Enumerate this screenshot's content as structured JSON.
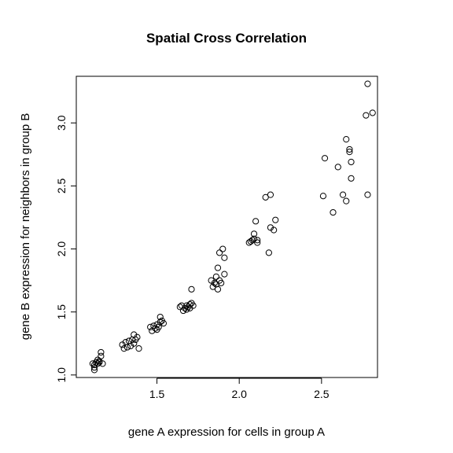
{
  "chart_data": {
    "type": "scatter",
    "title": "Spatial Cross Correlation",
    "xlabel": "gene A expression for cells in group A",
    "ylabel": "gene B expression for neighbors in group B",
    "xlim": [
      1.01,
      2.84
    ],
    "ylim": [
      0.98,
      3.37
    ],
    "x_ticks": [
      1.5,
      2.0,
      2.5
    ],
    "x_tick_labels": [
      "1.5",
      "2.0",
      "2.5"
    ],
    "y_ticks": [
      1.0,
      1.5,
      2.0,
      2.5,
      3.0
    ],
    "y_tick_labels": [
      "1.0",
      "1.5",
      "2.0",
      "2.5",
      "3.0"
    ],
    "grid": false,
    "marker": "open-circle",
    "points": [
      [
        1.12,
        1.04
      ],
      [
        1.12,
        1.06
      ],
      [
        1.12,
        1.08
      ],
      [
        1.11,
        1.09
      ],
      [
        1.13,
        1.1
      ],
      [
        1.14,
        1.09
      ],
      [
        1.15,
        1.1
      ],
      [
        1.15,
        1.11
      ],
      [
        1.14,
        1.12
      ],
      [
        1.16,
        1.15
      ],
      [
        1.16,
        1.18
      ],
      [
        1.17,
        1.09
      ],
      [
        1.29,
        1.24
      ],
      [
        1.3,
        1.21
      ],
      [
        1.31,
        1.26
      ],
      [
        1.32,
        1.22
      ],
      [
        1.33,
        1.27
      ],
      [
        1.34,
        1.23
      ],
      [
        1.35,
        1.28
      ],
      [
        1.36,
        1.25
      ],
      [
        1.36,
        1.32
      ],
      [
        1.37,
        1.28
      ],
      [
        1.38,
        1.3
      ],
      [
        1.39,
        1.21
      ],
      [
        1.46,
        1.38
      ],
      [
        1.47,
        1.35
      ],
      [
        1.48,
        1.39
      ],
      [
        1.49,
        1.37
      ],
      [
        1.5,
        1.4
      ],
      [
        1.5,
        1.36
      ],
      [
        1.51,
        1.38
      ],
      [
        1.52,
        1.42
      ],
      [
        1.52,
        1.46
      ],
      [
        1.53,
        1.43
      ],
      [
        1.54,
        1.41
      ],
      [
        1.64,
        1.54
      ],
      [
        1.65,
        1.55
      ],
      [
        1.66,
        1.51
      ],
      [
        1.67,
        1.53
      ],
      [
        1.68,
        1.52
      ],
      [
        1.68,
        1.55
      ],
      [
        1.69,
        1.54
      ],
      [
        1.7,
        1.56
      ],
      [
        1.7,
        1.53
      ],
      [
        1.71,
        1.57
      ],
      [
        1.72,
        1.55
      ],
      [
        1.71,
        1.68
      ],
      [
        1.83,
        1.75
      ],
      [
        1.84,
        1.7
      ],
      [
        1.85,
        1.73
      ],
      [
        1.86,
        1.72
      ],
      [
        1.86,
        1.78
      ],
      [
        1.87,
        1.68
      ],
      [
        1.87,
        1.85
      ],
      [
        1.88,
        1.75
      ],
      [
        1.88,
        1.97
      ],
      [
        1.9,
        2.0
      ],
      [
        1.91,
        1.93
      ],
      [
        1.91,
        1.8
      ],
      [
        1.89,
        1.73
      ],
      [
        2.06,
        2.05
      ],
      [
        2.07,
        2.06
      ],
      [
        2.08,
        2.07
      ],
      [
        2.09,
        2.08
      ],
      [
        2.09,
        2.12
      ],
      [
        2.1,
        2.22
      ],
      [
        2.11,
        2.05
      ],
      [
        2.11,
        2.07
      ],
      [
        2.16,
        2.41
      ],
      [
        2.18,
        1.97
      ],
      [
        2.19,
        2.43
      ],
      [
        2.19,
        2.17
      ],
      [
        2.21,
        2.15
      ],
      [
        2.22,
        2.23
      ],
      [
        2.51,
        2.42
      ],
      [
        2.52,
        2.72
      ],
      [
        2.57,
        2.29
      ],
      [
        2.6,
        2.65
      ],
      [
        2.63,
        2.43
      ],
      [
        2.65,
        2.87
      ],
      [
        2.65,
        2.38
      ],
      [
        2.67,
        2.79
      ],
      [
        2.67,
        2.77
      ],
      [
        2.68,
        2.69
      ],
      [
        2.68,
        2.56
      ],
      [
        2.77,
        3.06
      ],
      [
        2.78,
        3.31
      ],
      [
        2.78,
        2.43
      ],
      [
        2.81,
        3.08
      ]
    ]
  }
}
